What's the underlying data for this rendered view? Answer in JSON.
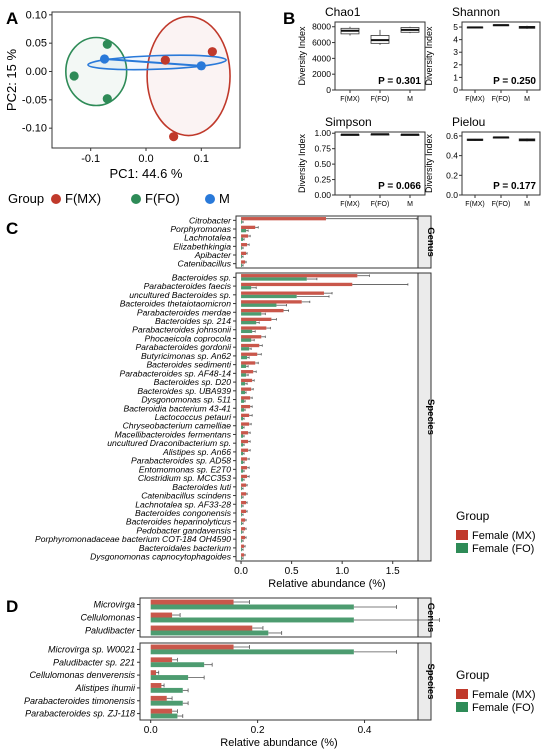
{
  "panel_labels": {
    "a": "A",
    "b": "B",
    "c": "C",
    "d": "D"
  },
  "colors": {
    "mx": "#c0392b",
    "fo": "#2e8b57",
    "m": "#2979d9",
    "strip": "#ebebeb"
  },
  "chart_data": [
    {
      "id": "A",
      "type": "scatter",
      "xlabel": "PC1: 44.6 %",
      "ylabel": "PC2: 15 %",
      "xlim": [
        -0.17,
        0.17
      ],
      "ylim": [
        -0.135,
        0.105
      ],
      "xticks": [
        -0.1,
        0.0,
        0.1
      ],
      "xtick_labels": [
        "-0.1",
        "0.0",
        "0.1"
      ],
      "yticks": [
        -0.1,
        -0.05,
        0.0,
        0.05,
        0.1
      ],
      "ytick_labels": [
        "-0.10",
        "-0.05",
        "0.00",
        "0.05",
        "0.10"
      ],
      "legend_title": "Group",
      "series": [
        {
          "name": "F(MX)",
          "color": "#c0392b",
          "points": [
            [
              0.035,
              0.02
            ],
            [
              0.12,
              0.035
            ],
            [
              0.05,
              -0.115
            ]
          ],
          "ellipse": {
            "cx": 0.077,
            "cy": -0.008,
            "rx": 0.075,
            "ry": 0.105
          }
        },
        {
          "name": "F(FO)",
          "color": "#2e8b57",
          "points": [
            [
              -0.07,
              0.048
            ],
            [
              -0.13,
              -0.008
            ],
            [
              -0.07,
              -0.048
            ]
          ],
          "ellipse": {
            "cx": -0.09,
            "cy": 0.0,
            "rx": 0.055,
            "ry": 0.06
          }
        },
        {
          "name": "M",
          "color": "#2979d9",
          "points": [
            [
              -0.075,
              0.022
            ],
            [
              0.1,
              0.01
            ]
          ],
          "ellipse": {
            "cx": 0.02,
            "cy": 0.016,
            "rx": 0.125,
            "ry": 0.012
          }
        }
      ]
    },
    {
      "id": "B",
      "type": "box",
      "ylabel": "Diversity Index",
      "categories": [
        "F(MX)",
        "F(FO)",
        "M"
      ],
      "panels": [
        {
          "title": "Chao1",
          "ylim": [
            0,
            8600
          ],
          "yticks": [
            0,
            2000,
            4000,
            6000,
            8000
          ],
          "p_label": "P = 0.301",
          "boxes": [
            {
              "q1": 7100,
              "median": 7500,
              "q3": 7800,
              "min": 6900,
              "max": 8000
            },
            {
              "q1": 5900,
              "median": 6300,
              "q3": 6900,
              "min": 5700,
              "max": 7600
            },
            {
              "q1": 7300,
              "median": 7600,
              "q3": 7900,
              "min": 7200,
              "max": 8000
            }
          ]
        },
        {
          "title": "Shannon",
          "ylim": [
            0,
            5.4
          ],
          "yticks": [
            0,
            1,
            2,
            3,
            4,
            5
          ],
          "p_label": "P = 0.250",
          "boxes": [
            {
              "q1": 4.93,
              "median": 4.97,
              "q3": 5.0,
              "min": 4.9,
              "max": 5.02
            },
            {
              "q1": 5.12,
              "median": 5.15,
              "q3": 5.18,
              "min": 5.1,
              "max": 5.2
            },
            {
              "q1": 4.9,
              "median": 4.98,
              "q3": 5.05,
              "min": 4.85,
              "max": 5.1
            }
          ]
        },
        {
          "title": "Simpson",
          "ylim": [
            0,
            1.02
          ],
          "yticks": [
            0,
            0.25,
            0.5,
            0.75,
            1.0
          ],
          "ytick_labels": [
            "0.00",
            "0.25",
            "0.50",
            "0.75",
            "1.00"
          ],
          "p_label": "P = 0.066",
          "boxes": [
            {
              "q1": 0.975,
              "median": 0.978,
              "q3": 0.98,
              "min": 0.972,
              "max": 0.982
            },
            {
              "q1": 0.982,
              "median": 0.984,
              "q3": 0.986,
              "min": 0.98,
              "max": 0.988
            },
            {
              "q1": 0.975,
              "median": 0.978,
              "q3": 0.98,
              "min": 0.972,
              "max": 0.982
            }
          ]
        },
        {
          "title": "Pielou",
          "ylim": [
            0,
            0.64
          ],
          "yticks": [
            0,
            0.2,
            0.4,
            0.6
          ],
          "ytick_labels": [
            "0.0",
            "0.2",
            "0.4",
            "0.6"
          ],
          "p_label": "P = 0.177",
          "boxes": [
            {
              "q1": 0.555,
              "median": 0.56,
              "q3": 0.568,
              "min": 0.55,
              "max": 0.57
            },
            {
              "q1": 0.583,
              "median": 0.585,
              "q3": 0.588,
              "min": 0.58,
              "max": 0.59
            },
            {
              "q1": 0.55,
              "median": 0.56,
              "q3": 0.57,
              "min": 0.545,
              "max": 0.575
            }
          ]
        }
      ]
    },
    {
      "id": "C",
      "type": "bar",
      "orientation": "horizontal",
      "xlabel": "Relative abundance (%)",
      "xlim": [
        -0.05,
        1.75
      ],
      "xticks": [
        0,
        0.5,
        1.0,
        1.5
      ],
      "xtick_labels": [
        "0.0",
        "0.5",
        "1.0",
        "1.5"
      ],
      "legend_title": "Group",
      "legend": [
        "Female (MX)",
        "Female (FO)"
      ],
      "facets": [
        {
          "strip": "Genus",
          "rows": [
            {
              "label": "Citrobacter",
              "mx": 0.84,
              "mx_err": 0.9,
              "fo": 0.01,
              "fo_err": 0.01
            },
            {
              "label": "Porphyromonas",
              "mx": 0.14,
              "mx_err": 0.03,
              "fo": 0.05,
              "fo_err": 0.02
            },
            {
              "label": "Lachnotalea",
              "mx": 0.07,
              "mx_err": 0.02,
              "fo": 0.02,
              "fo_err": 0.01
            },
            {
              "label": "Elizabethkingia",
              "mx": 0.06,
              "mx_err": 0.02,
              "fo": 0.01,
              "fo_err": 0.01
            },
            {
              "label": "Apibacter",
              "mx": 0.05,
              "mx_err": 0.01,
              "fo": 0.01,
              "fo_err": 0.01
            },
            {
              "label": "Catenibacillus",
              "mx": 0.04,
              "mx_err": 0.01,
              "fo": 0.01,
              "fo_err": 0.01
            }
          ]
        },
        {
          "strip": "Species",
          "rows": [
            {
              "label": "Bacteroides sp.",
              "mx": 1.15,
              "mx_err": 0.12,
              "fo": 0.65,
              "fo_err": 0.1
            },
            {
              "label": "Parabacteroides faecis",
              "mx": 1.1,
              "mx_err": 0.55,
              "fo": 0.1,
              "fo_err": 0.05
            },
            {
              "label": "uncultured Bacteroides sp.",
              "mx": 0.82,
              "mx_err": 0.08,
              "fo": 0.55,
              "fo_err": 0.32
            },
            {
              "label": "Bacteroides thetaiotaomicron",
              "mx": 0.6,
              "mx_err": 0.08,
              "fo": 0.35,
              "fo_err": 0.1
            },
            {
              "label": "Parabacteroides merdae",
              "mx": 0.42,
              "mx_err": 0.05,
              "fo": 0.2,
              "fo_err": 0.04
            },
            {
              "label": "Bacteroides sp. 214",
              "mx": 0.3,
              "mx_err": 0.05,
              "fo": 0.15,
              "fo_err": 0.03
            },
            {
              "label": "Parabacteroides johnsonii",
              "mx": 0.25,
              "mx_err": 0.04,
              "fo": 0.11,
              "fo_err": 0.03
            },
            {
              "label": "Phocaeicola coprocola",
              "mx": 0.2,
              "mx_err": 0.04,
              "fo": 0.1,
              "fo_err": 0.03
            },
            {
              "label": "Parabacteroides gordonii",
              "mx": 0.18,
              "mx_err": 0.03,
              "fo": 0.08,
              "fo_err": 0.02
            },
            {
              "label": "Butyricimonas sp. An62",
              "mx": 0.16,
              "mx_err": 0.04,
              "fo": 0.06,
              "fo_err": 0.02
            },
            {
              "label": "Bacteroides sedimenti",
              "mx": 0.14,
              "mx_err": 0.03,
              "fo": 0.05,
              "fo_err": 0.02
            },
            {
              "label": "Parabacteroides sp. AF48-14",
              "mx": 0.12,
              "mx_err": 0.03,
              "fo": 0.05,
              "fo_err": 0.02
            },
            {
              "label": "Bacteroides sp. D20",
              "mx": 0.11,
              "mx_err": 0.02,
              "fo": 0.04,
              "fo_err": 0.02
            },
            {
              "label": "Bacteroides sp. UBA939",
              "mx": 0.1,
              "mx_err": 0.02,
              "fo": 0.04,
              "fo_err": 0.01
            },
            {
              "label": "Dysgonomonas sp. 511",
              "mx": 0.09,
              "mx_err": 0.02,
              "fo": 0.03,
              "fo_err": 0.01
            },
            {
              "label": "Bacteroidia bacterium 43-41",
              "mx": 0.09,
              "mx_err": 0.02,
              "fo": 0.03,
              "fo_err": 0.01
            },
            {
              "label": "Lactococcus petauri",
              "mx": 0.08,
              "mx_err": 0.03,
              "fo": 0.02,
              "fo_err": 0.01
            },
            {
              "label": "Chryseobacterium camelliae",
              "mx": 0.08,
              "mx_err": 0.02,
              "fo": 0.02,
              "fo_err": 0.01
            },
            {
              "label": "Macellibacteroides fermentans",
              "mx": 0.07,
              "mx_err": 0.02,
              "fo": 0.02,
              "fo_err": 0.01
            },
            {
              "label": "uncultured Draconibacterium sp.",
              "mx": 0.07,
              "mx_err": 0.02,
              "fo": 0.02,
              "fo_err": 0.01
            },
            {
              "label": "Alistipes sp. An66",
              "mx": 0.07,
              "mx_err": 0.02,
              "fo": 0.02,
              "fo_err": 0.01
            },
            {
              "label": "Parabacteroides sp. AD58",
              "mx": 0.06,
              "mx_err": 0.02,
              "fo": 0.02,
              "fo_err": 0.01
            },
            {
              "label": "Entomomonas sp. E2T0",
              "mx": 0.06,
              "mx_err": 0.02,
              "fo": 0.02,
              "fo_err": 0.01
            },
            {
              "label": "Clostridium sp. MCC353",
              "mx": 0.06,
              "mx_err": 0.02,
              "fo": 0.02,
              "fo_err": 0.01
            },
            {
              "label": "Bacteroides luti",
              "mx": 0.05,
              "mx_err": 0.01,
              "fo": 0.01,
              "fo_err": 0.01
            },
            {
              "label": "Catenibacillus scindens",
              "mx": 0.05,
              "mx_err": 0.01,
              "fo": 0.01,
              "fo_err": 0.01
            },
            {
              "label": "Lachnotalea sp. AF33-28",
              "mx": 0.05,
              "mx_err": 0.01,
              "fo": 0.01,
              "fo_err": 0.01
            },
            {
              "label": "Bacteroides congonensis",
              "mx": 0.05,
              "mx_err": 0.01,
              "fo": 0.01,
              "fo_err": 0.01
            },
            {
              "label": "Bacteroides heparinolyticus",
              "mx": 0.04,
              "mx_err": 0.01,
              "fo": 0.01,
              "fo_err": 0.01
            },
            {
              "label": "Pedobacter gandavensis",
              "mx": 0.04,
              "mx_err": 0.01,
              "fo": 0.01,
              "fo_err": 0.01
            },
            {
              "label": "Porphyromonadaceae bacterium COT-184 OH4590",
              "mx": 0.04,
              "mx_err": 0.01,
              "fo": 0.01,
              "fo_err": 0.01
            },
            {
              "label": "Bacteroidales bacterium",
              "mx": 0.03,
              "mx_err": 0.01,
              "fo": 0.01,
              "fo_err": 0.01
            },
            {
              "label": "Dysgonomonas capnocytophagoides",
              "mx": 0.03,
              "mx_err": 0.01,
              "fo": 0.01,
              "fo_err": 0.01
            }
          ]
        }
      ]
    },
    {
      "id": "D",
      "type": "bar",
      "orientation": "horizontal",
      "xlabel": "Relative abundance (%)",
      "xlim": [
        -0.02,
        0.5
      ],
      "xticks": [
        0,
        0.2,
        0.4
      ],
      "xtick_labels": [
        "0.0",
        "0.2",
        "0.4"
      ],
      "legend_title": "Group",
      "legend": [
        "Female (MX)",
        "Female (FO)"
      ],
      "facets": [
        {
          "strip": "Genus",
          "rows": [
            {
              "label": "Microvirga",
              "mx": 0.155,
              "mx_err": 0.03,
              "fo": 0.38,
              "fo_err": 0.08
            },
            {
              "label": "Cellulomonas",
              "mx": 0.04,
              "mx_err": 0.015,
              "fo": 0.38,
              "fo_err": 0.16
            },
            {
              "label": "Paludibacter",
              "mx": 0.19,
              "mx_err": 0.02,
              "fo": 0.22,
              "fo_err": 0.025
            }
          ]
        },
        {
          "strip": "Species",
          "rows": [
            {
              "label": "Microvirga sp. W0021",
              "mx": 0.155,
              "mx_err": 0.03,
              "fo": 0.38,
              "fo_err": 0.08
            },
            {
              "label": "Paludibacter sp. 221",
              "mx": 0.04,
              "mx_err": 0.01,
              "fo": 0.1,
              "fo_err": 0.015
            },
            {
              "label": "Cellulomonas denverensis",
              "mx": 0.01,
              "mx_err": 0.005,
              "fo": 0.07,
              "fo_err": 0.03
            },
            {
              "label": "Alistipes ihumii",
              "mx": 0.02,
              "mx_err": 0.005,
              "fo": 0.06,
              "fo_err": 0.01
            },
            {
              "label": "Parabacteroides timonensis",
              "mx": 0.03,
              "mx_err": 0.01,
              "fo": 0.06,
              "fo_err": 0.01
            },
            {
              "label": "Parabacteroides sp. ZJ-118",
              "mx": 0.04,
              "mx_err": 0.01,
              "fo": 0.05,
              "fo_err": 0.01
            }
          ]
        }
      ]
    }
  ]
}
